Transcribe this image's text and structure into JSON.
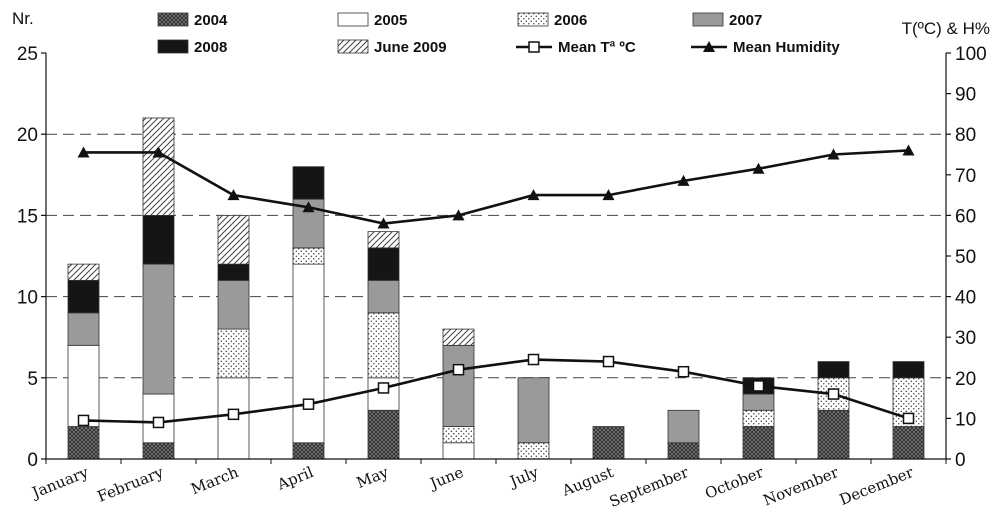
{
  "chart_data": {
    "type": "bar",
    "stacked": true,
    "title": "",
    "ylabel_left": "Nr.",
    "ylabel_right": "T(ºC) & H%",
    "ylim_left": [
      0,
      25
    ],
    "yticks_left": [
      "0",
      "5",
      "10",
      "15",
      "20",
      "25"
    ],
    "ylim_right": [
      0,
      100
    ],
    "yticks_right": [
      "0",
      "10",
      "20",
      "30",
      "40",
      "50",
      "60",
      "70",
      "80",
      "90",
      "100"
    ],
    "grid": "dashed horizontal at 5, 10, 15, 20",
    "legend_position": "top",
    "categories": [
      "January",
      "February",
      "March",
      "April",
      "May",
      "June",
      "July",
      "August",
      "September",
      "October",
      "November",
      "December"
    ],
    "series": [
      {
        "name": "2004",
        "values": [
          2,
          1,
          0,
          1,
          3,
          0,
          0,
          2,
          1,
          2,
          3,
          2
        ],
        "pattern": "crosshatch-dark"
      },
      {
        "name": "2005",
        "values": [
          5,
          3,
          5,
          11,
          2,
          1,
          0,
          0,
          0,
          0,
          0,
          0
        ],
        "pattern": "white"
      },
      {
        "name": "2006",
        "values": [
          0,
          0,
          3,
          1,
          4,
          1,
          1,
          0,
          0,
          1,
          2,
          3
        ],
        "pattern": "dotted"
      },
      {
        "name": "2007",
        "values": [
          2,
          8,
          3,
          3,
          2,
          5,
          4,
          0,
          2,
          1,
          0,
          0
        ],
        "pattern": "gray"
      },
      {
        "name": "2008",
        "values": [
          2,
          3,
          1,
          2,
          2,
          0,
          0,
          0,
          0,
          1,
          1,
          1
        ],
        "pattern": "black"
      },
      {
        "name": "June 2009",
        "values": [
          1,
          6,
          3,
          0,
          1,
          1,
          0,
          0,
          0,
          0,
          0,
          0
        ],
        "pattern": "hatched"
      }
    ],
    "lines": [
      {
        "name": "Mean Tª ºC",
        "axis": "right",
        "marker": "open-square",
        "values": [
          9.5,
          9,
          11,
          13.5,
          17.5,
          22,
          24.5,
          24,
          21.5,
          18,
          16,
          10
        ]
      },
      {
        "name": "Mean Humidity",
        "axis": "right",
        "marker": "filled-triangle",
        "values": [
          75.5,
          75.5,
          65,
          62,
          58,
          60,
          65,
          65,
          68.5,
          71.5,
          75,
          76
        ]
      }
    ]
  },
  "legend": {
    "items": [
      "2004",
      "2005",
      "2006",
      "2007",
      "2008",
      "June 2009",
      "Mean Tª ºC",
      "Mean Humidity"
    ]
  }
}
